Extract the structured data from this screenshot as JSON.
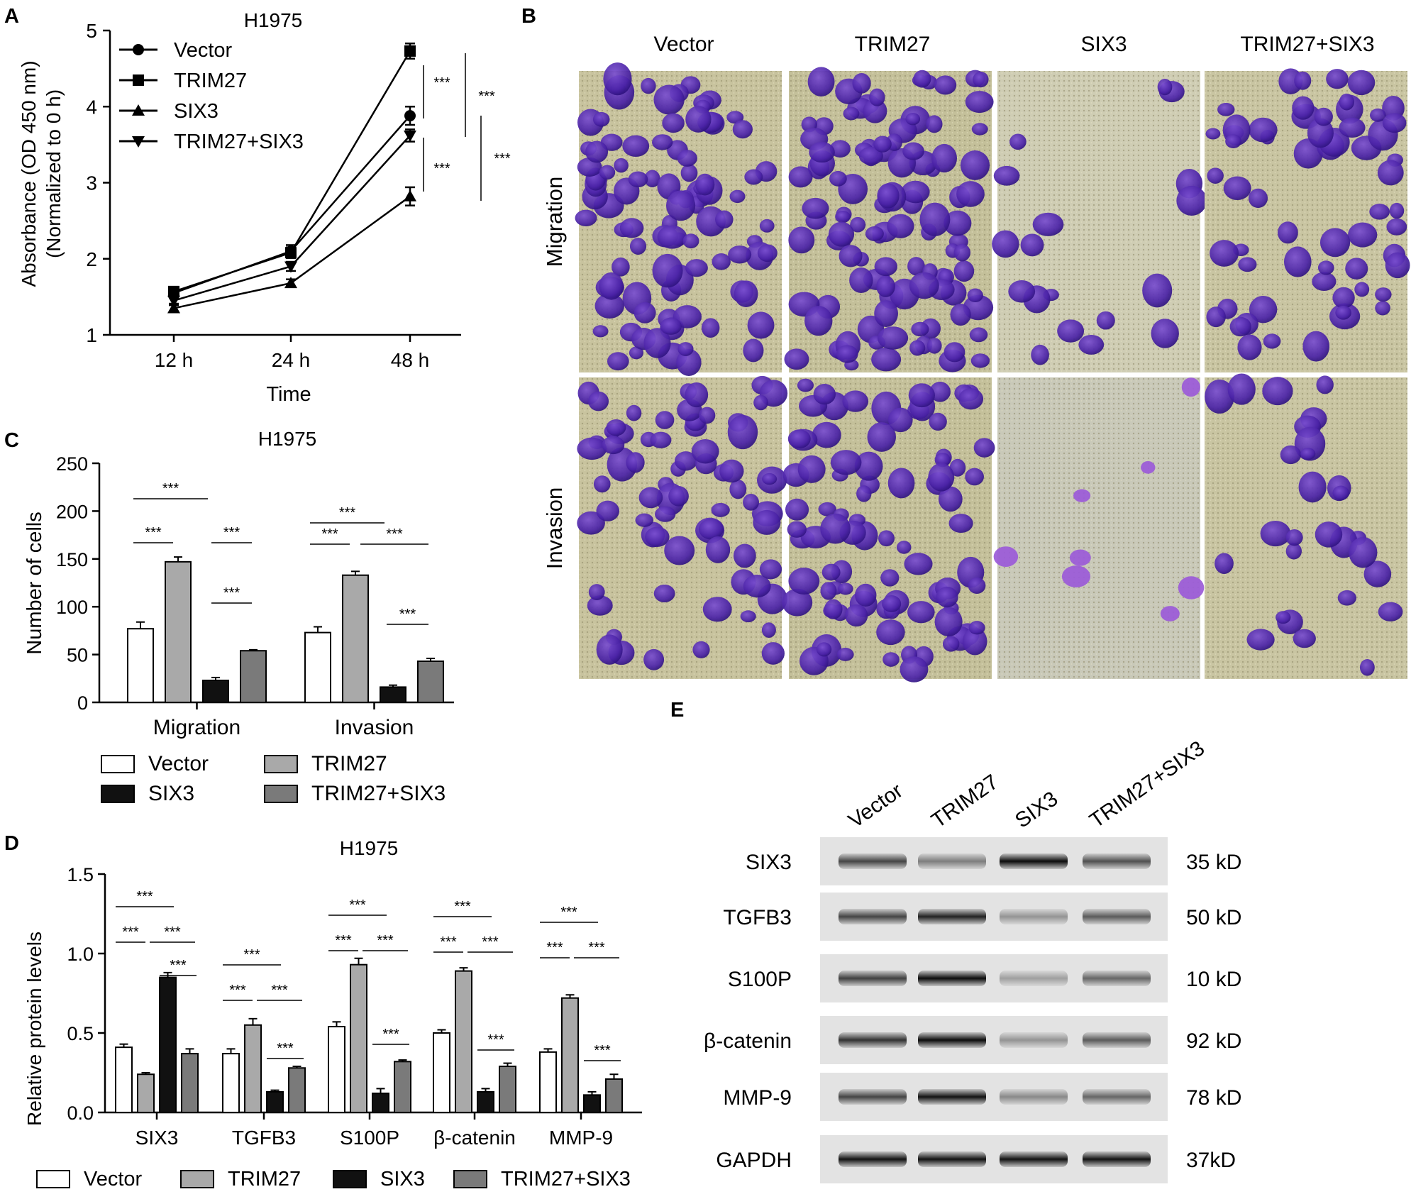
{
  "panels": {
    "A": {
      "letter": "A",
      "title": "H1975",
      "ylabel_line1": "Absorbance (OD 450 nm)",
      "ylabel_line2": "(Normalized to 0 h)",
      "xlabel": "Time",
      "sig": "***"
    },
    "B": {
      "letter": "B",
      "columns": [
        "Vector",
        "TRIM27",
        "SIX3",
        "TRIM27+SIX3"
      ],
      "rows": [
        "Migration",
        "Invasion"
      ]
    },
    "C": {
      "letter": "C",
      "title": "H1975",
      "ylabel": "Number of cells",
      "sig": "***"
    },
    "D": {
      "letter": "D",
      "title": "H1975",
      "ylabel": "Relative protein levels",
      "sig": "***"
    },
    "E": {
      "letter": "E",
      "lanes": [
        "Vector",
        "TRIM27",
        "SIX3",
        "TRIM27+SIX3"
      ],
      "proteins": [
        "SIX3",
        "TGFB3",
        "S100P",
        "β-catenin",
        "MMP-9",
        "GAPDH"
      ],
      "sizes": [
        "35 kD",
        "50 kD",
        "10 kD",
        "92 kD",
        "78 kD",
        "37kD"
      ],
      "band_intensity": [
        [
          0.7,
          0.45,
          0.95,
          0.65
        ],
        [
          0.7,
          0.85,
          0.35,
          0.6
        ],
        [
          0.72,
          0.95,
          0.3,
          0.55
        ],
        [
          0.78,
          0.95,
          0.35,
          0.6
        ],
        [
          0.7,
          0.92,
          0.4,
          0.55
        ],
        [
          0.92,
          0.92,
          0.92,
          0.92
        ]
      ]
    }
  },
  "chart_data": [
    {
      "type": "line",
      "title": "H1975",
      "xlabel": "Time",
      "ylabel": "Absorbance (OD 450 nm) (Normalized to 0 h)",
      "x": [
        "12 h",
        "24 h",
        "48 h"
      ],
      "ylim": [
        1,
        5
      ],
      "yticks": [
        1,
        2,
        3,
        4,
        5
      ],
      "series": [
        {
          "name": "Vector",
          "marker": "circle",
          "values": [
            1.55,
            2.1,
            3.88
          ],
          "err": [
            0.05,
            0.08,
            0.12
          ]
        },
        {
          "name": "TRIM27",
          "marker": "square",
          "values": [
            1.57,
            2.08,
            4.73
          ],
          "err": [
            0.05,
            0.07,
            0.1
          ]
        },
        {
          "name": "SIX3",
          "marker": "triangle-up",
          "values": [
            1.35,
            1.68,
            2.82
          ],
          "err": [
            0.04,
            0.05,
            0.12
          ]
        },
        {
          "name": "TRIM27+SIX3",
          "marker": "triangle-down",
          "values": [
            1.45,
            1.9,
            3.62
          ],
          "err": [
            0.04,
            0.06,
            0.08
          ]
        }
      ]
    },
    {
      "type": "bar",
      "title": "H1975",
      "ylabel": "Number of cells",
      "categories": [
        "Migration",
        "Invasion"
      ],
      "ylim": [
        0,
        250
      ],
      "yticks": [
        0,
        50,
        100,
        150,
        200,
        250
      ],
      "series": [
        {
          "name": "Vector",
          "color": "#ffffff",
          "values": [
            77,
            73
          ],
          "err": [
            7,
            6
          ]
        },
        {
          "name": "TRIM27",
          "color": "#a9a9a9",
          "values": [
            147,
            133
          ],
          "err": [
            5,
            4
          ]
        },
        {
          "name": "SIX3",
          "color": "#111111",
          "values": [
            23,
            16
          ],
          "err": [
            3,
            2
          ]
        },
        {
          "name": "TRIM27+SIX3",
          "color": "#7a7a7a",
          "values": [
            54,
            43
          ],
          "err": [
            1,
            3
          ]
        }
      ]
    },
    {
      "type": "bar",
      "title": "H1975",
      "ylabel": "Relative protein levels",
      "categories": [
        "SIX3",
        "TGFB3",
        "S100P",
        "β-catenin",
        "MMP-9"
      ],
      "ylim": [
        0,
        1.5
      ],
      "yticks": [
        "0.0",
        "0.5",
        "1.0",
        "1.5"
      ],
      "series": [
        {
          "name": "Vector",
          "color": "#ffffff",
          "values": [
            0.41,
            0.37,
            0.54,
            0.5,
            0.38
          ],
          "err": [
            0.02,
            0.03,
            0.03,
            0.02,
            0.02
          ]
        },
        {
          "name": "TRIM27",
          "color": "#a9a9a9",
          "values": [
            0.24,
            0.55,
            0.93,
            0.89,
            0.72
          ],
          "err": [
            0.01,
            0.04,
            0.04,
            0.02,
            0.02
          ]
        },
        {
          "name": "SIX3",
          "color": "#111111",
          "values": [
            0.85,
            0.13,
            0.12,
            0.13,
            0.11
          ],
          "err": [
            0.03,
            0.01,
            0.03,
            0.02,
            0.02
          ]
        },
        {
          "name": "TRIM27+SIX3",
          "color": "#7a7a7a",
          "values": [
            0.37,
            0.28,
            0.32,
            0.29,
            0.21
          ],
          "err": [
            0.03,
            0.01,
            0.01,
            0.02,
            0.03
          ]
        }
      ]
    }
  ]
}
